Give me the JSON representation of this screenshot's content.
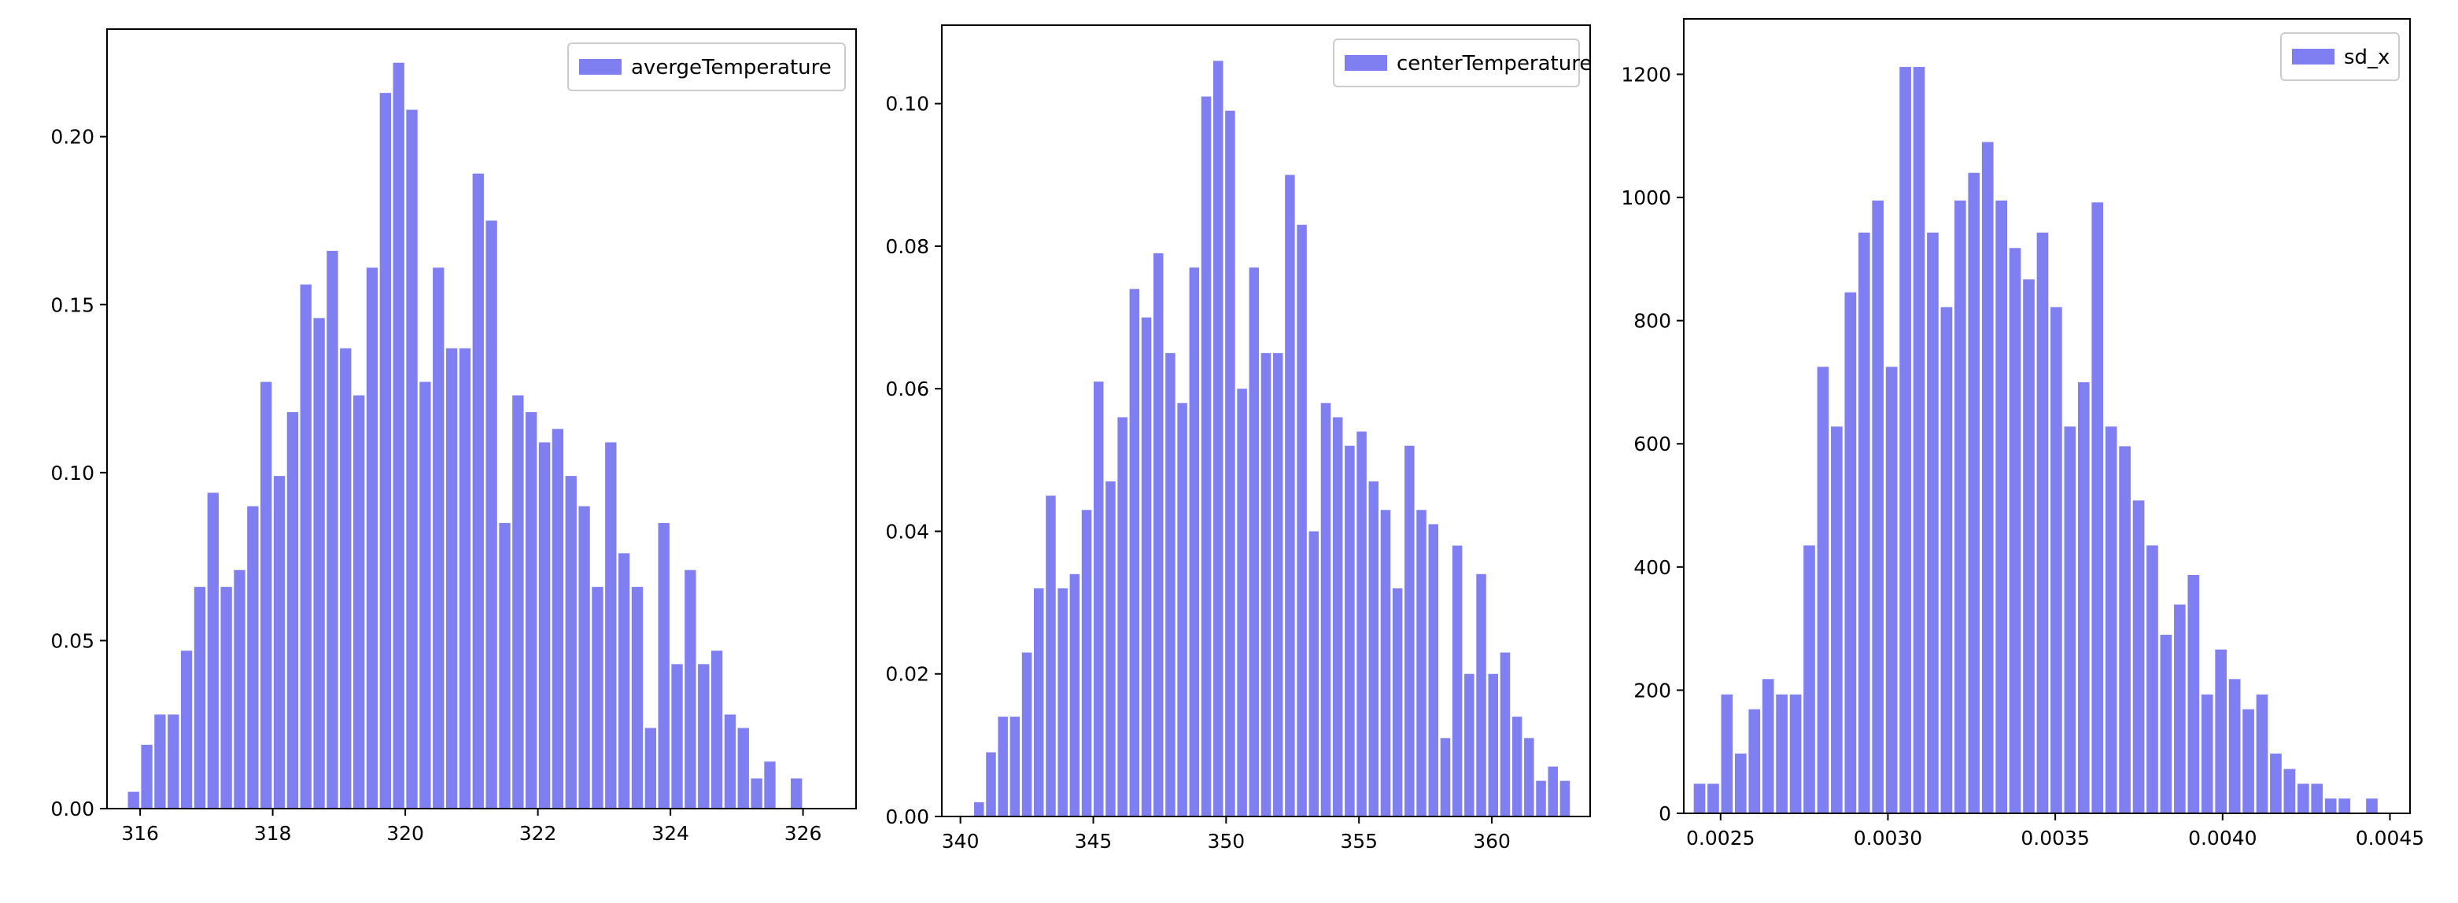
{
  "charts": [
    {
      "type": "bar",
      "title": "",
      "xlabel": "",
      "ylabel": "",
      "color": "#7f7ff2",
      "legend": {
        "label": "avergeTemperature",
        "position": "top-right"
      },
      "xlim": [
        315.5,
        326.8
      ],
      "ylim": [
        0,
        0.232
      ],
      "bar_width": 0.17,
      "xticks": [
        {
          "value": 316,
          "label": "316"
        },
        {
          "value": 318,
          "label": "318"
        },
        {
          "value": 320,
          "label": "320"
        },
        {
          "value": 322,
          "label": "322"
        },
        {
          "value": 324,
          "label": "324"
        },
        {
          "value": 326,
          "label": "326"
        }
      ],
      "yticks": [
        {
          "value": 0,
          "label": "0.00"
        },
        {
          "value": 0.05,
          "label": "0.05"
        },
        {
          "value": 0.1,
          "label": "0.10"
        },
        {
          "value": 0.15,
          "label": "0.15"
        },
        {
          "value": 0.2,
          "label": "0.20"
        }
      ],
      "x": [
        315.9,
        316.1,
        316.3,
        316.5,
        316.7,
        316.9,
        317.1,
        317.3,
        317.5,
        317.7,
        317.9,
        318.1,
        318.3,
        318.5,
        318.7,
        318.9,
        319.1,
        319.3,
        319.5,
        319.7,
        319.9,
        320.1,
        320.3,
        320.5,
        320.7,
        320.9,
        321.1,
        321.3,
        321.5,
        321.7,
        321.9,
        322.1,
        322.3,
        322.5,
        322.7,
        322.9,
        323.1,
        323.3,
        323.5,
        323.7,
        323.9,
        324.1,
        324.3,
        324.5,
        324.7,
        324.9,
        325.1,
        325.3,
        325.5,
        325.7,
        325.9,
        326.1,
        326.3
      ],
      "values": [
        0.005,
        0.019,
        0.028,
        0.028,
        0.047,
        0.066,
        0.094,
        0.066,
        0.071,
        0.09,
        0.127,
        0.099,
        0.118,
        0.156,
        0.146,
        0.166,
        0.137,
        0.123,
        0.161,
        0.213,
        0.222,
        0.208,
        0.127,
        0.161,
        0.137,
        0.137,
        0.189,
        0.175,
        0.085,
        0.123,
        0.118,
        0.109,
        0.113,
        0.099,
        0.09,
        0.066,
        0.109,
        0.076,
        0.066,
        0.024,
        0.085,
        0.043,
        0.071,
        0.043,
        0.047,
        0.028,
        0.024,
        0.009,
        0.014,
        0,
        0.009,
        0,
        0
      ]
    },
    {
      "type": "bar",
      "title": "",
      "xlabel": "",
      "ylabel": "",
      "color": "#7f7ff2",
      "legend": {
        "label": "centerTemperature",
        "position": "top-right"
      },
      "xlim": [
        339.3,
        363.7
      ],
      "ylim": [
        0,
        0.111
      ],
      "bar_width": 0.37,
      "xticks": [
        {
          "value": 340,
          "label": "340"
        },
        {
          "value": 345,
          "label": "345"
        },
        {
          "value": 350,
          "label": "350"
        },
        {
          "value": 355,
          "label": "355"
        },
        {
          "value": 360,
          "label": "360"
        }
      ],
      "yticks": [
        {
          "value": 0,
          "label": "0.00"
        },
        {
          "value": 0.02,
          "label": "0.02"
        },
        {
          "value": 0.04,
          "label": "0.04"
        },
        {
          "value": 0.06,
          "label": "0.06"
        },
        {
          "value": 0.08,
          "label": "0.08"
        },
        {
          "value": 0.1,
          "label": "0.10"
        }
      ],
      "x": [
        340.7,
        341.15,
        341.6,
        342.05,
        342.5,
        342.95,
        343.4,
        343.85,
        344.3,
        344.75,
        345.2,
        345.65,
        346.1,
        346.55,
        347.0,
        347.45,
        347.9,
        348.35,
        348.8,
        349.25,
        349.7,
        350.15,
        350.6,
        351.05,
        351.5,
        351.95,
        352.4,
        352.85,
        353.3,
        353.75,
        354.2,
        354.65,
        355.1,
        355.55,
        356.0,
        356.45,
        356.9,
        357.35,
        357.8,
        358.25,
        358.7,
        359.15,
        359.6,
        360.05,
        360.5,
        360.95,
        361.4,
        361.85,
        362.3,
        362.75
      ],
      "values": [
        0.002,
        0.009,
        0.014,
        0.014,
        0.023,
        0.032,
        0.045,
        0.032,
        0.034,
        0.043,
        0.061,
        0.047,
        0.056,
        0.074,
        0.07,
        0.079,
        0.065,
        0.058,
        0.077,
        0.101,
        0.106,
        0.099,
        0.06,
        0.077,
        0.065,
        0.065,
        0.09,
        0.083,
        0.04,
        0.058,
        0.056,
        0.052,
        0.054,
        0.047,
        0.043,
        0.032,
        0.052,
        0.043,
        0.041,
        0.011,
        0.038,
        0.02,
        0.034,
        0.02,
        0.023,
        0.014,
        0.011,
        0.005,
        0.007,
        0.005
      ]
    },
    {
      "type": "bar",
      "title": "",
      "xlabel": "",
      "ylabel": "",
      "color": "#7f7ff2",
      "legend": {
        "label": "sd_x",
        "position": "top-right"
      },
      "xlim": [
        0.00239,
        0.00456
      ],
      "ylim": [
        0,
        1290
      ],
      "bar_width": 3.45e-05,
      "xticks": [
        {
          "value": 0.0025,
          "label": "0.0025"
        },
        {
          "value": 0.003,
          "label": "0.0030"
        },
        {
          "value": 0.0035,
          "label": "0.0035"
        },
        {
          "value": 0.004,
          "label": "0.0040"
        },
        {
          "value": 0.0045,
          "label": "0.0045"
        }
      ],
      "yticks": [
        {
          "value": 0,
          "label": "0"
        },
        {
          "value": 200,
          "label": "200"
        },
        {
          "value": 400,
          "label": "400"
        },
        {
          "value": 600,
          "label": "600"
        },
        {
          "value": 800,
          "label": "800"
        },
        {
          "value": 1000,
          "label": "1000"
        },
        {
          "value": 1200,
          "label": "1200"
        }
      ],
      "x": [
        0.002437,
        0.002478,
        0.002519,
        0.00256,
        0.002601,
        0.002642,
        0.002683,
        0.002724,
        0.002765,
        0.002806,
        0.002847,
        0.002888,
        0.002929,
        0.00297,
        0.003011,
        0.003052,
        0.003093,
        0.003134,
        0.003175,
        0.003216,
        0.003257,
        0.003298,
        0.003339,
        0.00338,
        0.003421,
        0.003462,
        0.003503,
        0.003544,
        0.003585,
        0.003626,
        0.003667,
        0.003708,
        0.003749,
        0.00379,
        0.003831,
        0.003872,
        0.003913,
        0.003954,
        0.003995,
        0.004036,
        0.004077,
        0.004118,
        0.004159,
        0.0042,
        0.004241,
        0.004282,
        0.004323,
        0.004364,
        0.004405,
        0.004446
      ],
      "values": [
        48,
        48,
        193,
        97,
        169,
        218,
        193,
        193,
        435,
        725,
        628,
        846,
        943,
        995,
        725,
        1212,
        1212,
        943,
        822,
        995,
        1040,
        1090,
        995,
        918,
        867,
        943,
        822,
        628,
        700,
        992,
        628,
        596,
        508,
        435,
        290,
        339,
        387,
        193,
        266,
        218,
        169,
        193,
        97,
        72,
        48,
        48,
        24,
        24,
        0,
        24
      ]
    }
  ]
}
